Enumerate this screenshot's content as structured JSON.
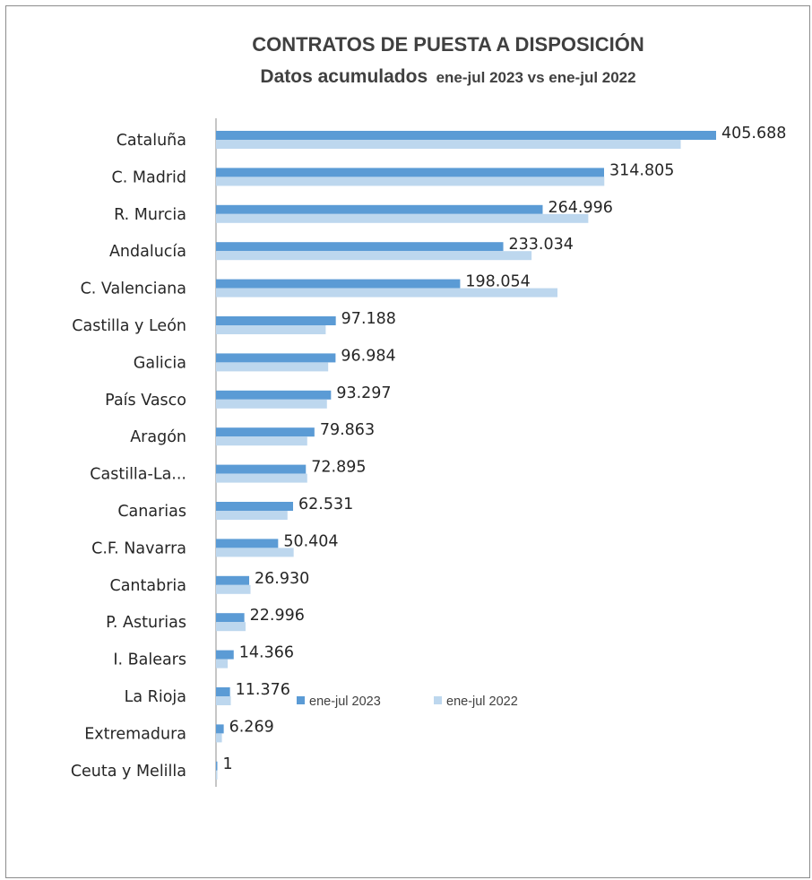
{
  "chart_data": {
    "type": "bar",
    "orientation": "horizontal",
    "title": "CONTRATOS DE PUESTA A DISPOSICIÓN",
    "subtitle_main": "Datos acumulados",
    "subtitle_rest": "ene-jul 2023 vs ene-jul 2022",
    "categories": [
      "Cataluña",
      "C. Madrid",
      "R. Murcia",
      "Andalucía",
      "C. Valenciana",
      "Castilla y León",
      "Galicia",
      "País Vasco",
      "Aragón",
      "Castilla-La...",
      "Canarias",
      "C.F. Navarra",
      "Cantabria",
      "P. Asturias",
      "I. Balears",
      "La Rioja",
      "Extremadura",
      "Ceuta y Melilla"
    ],
    "value_labels": [
      "405.688",
      "314.805",
      "264.996",
      "233.034",
      "198.054",
      "97.188",
      "96.984",
      "93.297",
      "79.863",
      "72.895",
      "62.531",
      "50.404",
      "26.930",
      "22.996",
      "14.366",
      "11.376",
      "6.269",
      "1"
    ],
    "series": [
      {
        "name": "ene-jul 2023",
        "color": "#5b9bd5",
        "values": [
          405688,
          314805,
          264996,
          233034,
          198054,
          97188,
          96984,
          93297,
          79863,
          72895,
          62531,
          50404,
          26930,
          22996,
          14366,
          11376,
          6269,
          1
        ]
      },
      {
        "name": "ene-jul 2022",
        "color": "#bdd7ee",
        "values": [
          377000,
          315000,
          302000,
          256000,
          277000,
          89000,
          91000,
          90000,
          74000,
          74000,
          58000,
          63000,
          28000,
          24000,
          9500,
          12000,
          4800,
          1
        ]
      }
    ],
    "xlim": [
      0,
      430000
    ],
    "grid": false,
    "legend": "bottom"
  }
}
